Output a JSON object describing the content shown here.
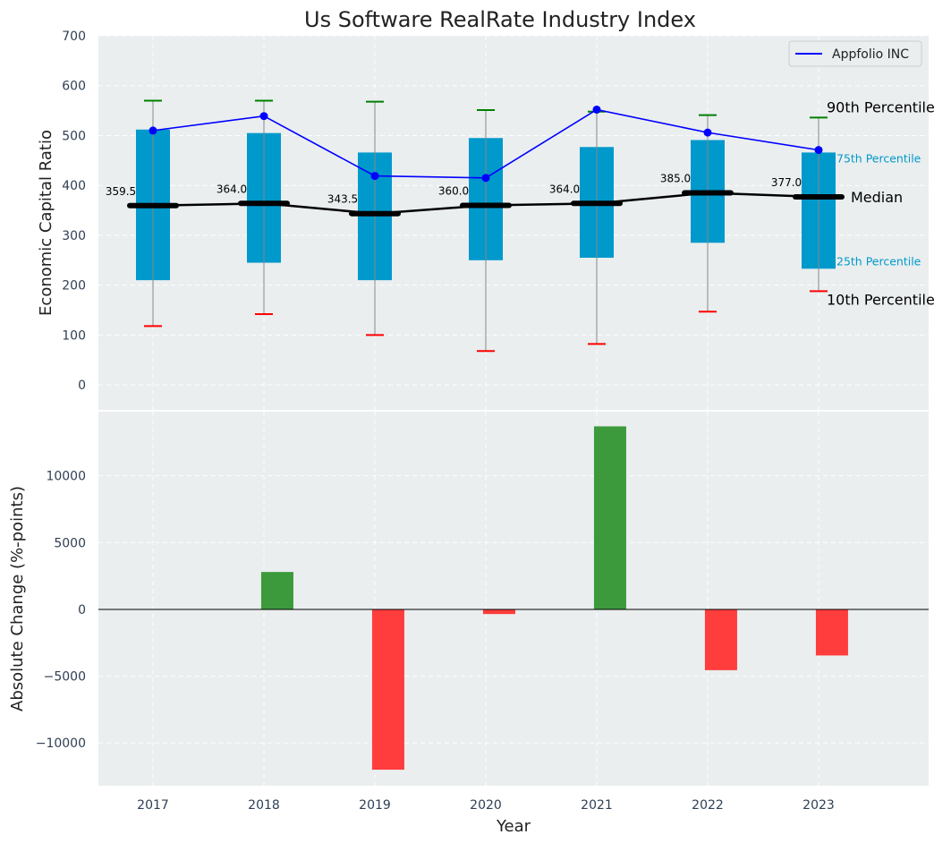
{
  "chart_data": [
    {
      "type": "box",
      "title": "Us Software RealRate Industry Index",
      "ylabel": "Economic Capital Ratio",
      "ylim": [
        -50,
        700
      ],
      "yticks": [
        0,
        100,
        200,
        300,
        400,
        500,
        600,
        700
      ],
      "categories": [
        "2017",
        "2018",
        "2019",
        "2020",
        "2021",
        "2022",
        "2023"
      ],
      "p10": [
        118,
        142,
        100,
        68,
        82,
        147,
        188
      ],
      "p25": [
        210,
        245,
        210,
        250,
        255,
        285,
        233
      ],
      "median": [
        359.5,
        364.0,
        343.5,
        360.0,
        364.0,
        385.0,
        377.0
      ],
      "median_labels": [
        "359.5",
        "364.0",
        "343.5",
        "360.0",
        "364.0",
        "385.0",
        "377.0"
      ],
      "p75": [
        512,
        505,
        466,
        495,
        477,
        491,
        466
      ],
      "p90": [
        570,
        570,
        568,
        551,
        548,
        541,
        536
      ],
      "series": [
        {
          "name": "Appfolio INC",
          "values": [
            510,
            539,
            419,
            415,
            552,
            506,
            471
          ],
          "color": "#0000ff"
        }
      ],
      "annotations": {
        "p90": "90th Percentile",
        "p75": "75th Percentile",
        "median": "Median",
        "p25": "25th Percentile",
        "p10": "10th Percentile"
      },
      "legend_position": "top-right",
      "grid": true
    },
    {
      "type": "bar",
      "ylabel": "Absolute Change (%-points)",
      "xlabel": "Year",
      "ylim": [
        -13200,
        14800
      ],
      "yticks": [
        -10000,
        -5000,
        0,
        5000,
        10000
      ],
      "ytick_labels": [
        "−10000",
        "−5000",
        "0",
        "5000",
        "10000"
      ],
      "categories": [
        "2017",
        "2018",
        "2019",
        "2020",
        "2021",
        "2022",
        "2023"
      ],
      "values": [
        0,
        2800,
        -12000,
        -350,
        13700,
        -4550,
        -3450
      ],
      "grid": true
    }
  ],
  "colors": {
    "box": "#0099cc",
    "whisker": "#888888",
    "median": "#000000",
    "p90_cap": "#008000",
    "p10_cap": "#ff0000",
    "bar_positive": "#3c9a3c",
    "bar_negative": "#ff3d3d",
    "panel_bg": "#eaeeef"
  }
}
